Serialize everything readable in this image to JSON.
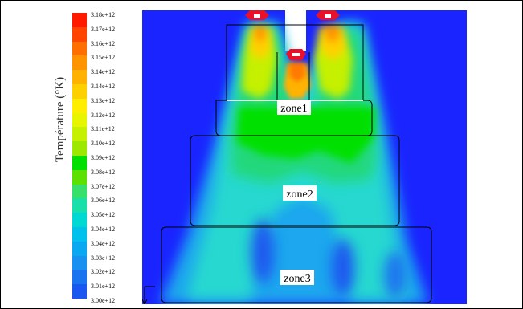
{
  "legend": {
    "title": "Température (°K)",
    "labels": [
      "3.18e+12",
      "3.17e+12",
      "3.16e+12",
      "3.15e+12",
      "3.14e+12",
      "3.14e+12",
      "3.13e+12",
      "3.12e+12",
      "3.11e+12",
      "3.10e+12",
      "3.09e+12",
      "3.08e+12",
      "3.07e+12",
      "3.06e+12",
      "3.05e+12",
      "3.04e+12",
      "3.04e+12",
      "3.03e+12",
      "3.02e+12",
      "3.01e+12",
      "3.00e+12"
    ],
    "colors": [
      "#ff1a00",
      "#ff4500",
      "#ff6e00",
      "#ff9400",
      "#ffb200",
      "#ffd000",
      "#ffee00",
      "#e8f500",
      "#c5f000",
      "#9ee800",
      "#00e000",
      "#5ce000",
      "#36e06b",
      "#19e0a8",
      "#00d8d4",
      "#00c0ec",
      "#0aa8f0",
      "#1a90f0",
      "#1a74f0",
      "#1a56f0"
    ]
  },
  "zones": [
    {
      "label": "zone1"
    },
    {
      "label": "zone2"
    },
    {
      "label": "zone3"
    }
  ],
  "field_colors": {
    "background": "#1a24ff",
    "burner": "#e8112b"
  }
}
